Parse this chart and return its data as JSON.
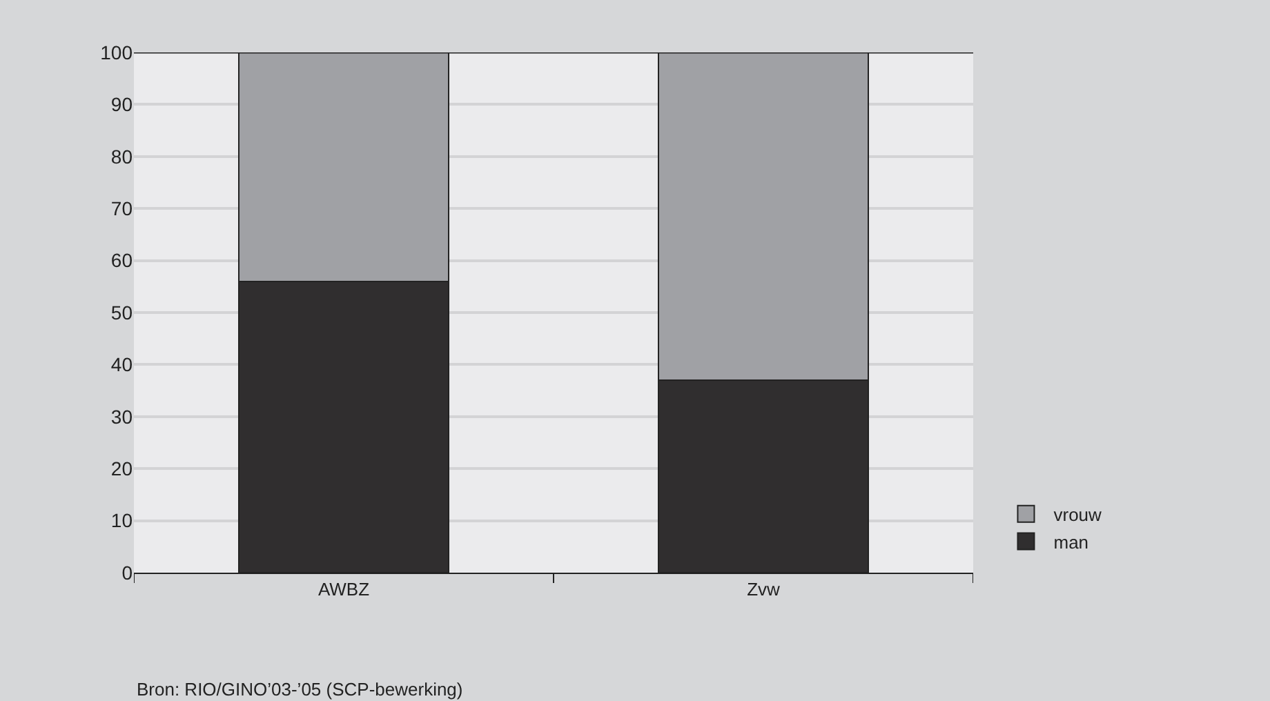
{
  "chart_data": {
    "type": "bar",
    "stacked": true,
    "categories": [
      "AWBZ",
      "Zvw"
    ],
    "series": [
      {
        "name": "man",
        "color": "#302e2f",
        "values": [
          56,
          37
        ]
      },
      {
        "name": "vrouw",
        "color": "#a0a1a5",
        "values": [
          44,
          63
        ]
      }
    ],
    "ylim": [
      0,
      100
    ],
    "yticks": [
      0,
      10,
      20,
      30,
      40,
      50,
      60,
      70,
      80,
      90,
      100
    ],
    "grid": "y",
    "legend": "bottom right",
    "annotations": [
      "Bron: RIO/GINO’03-’05 (SCP-bewerking)"
    ]
  }
}
